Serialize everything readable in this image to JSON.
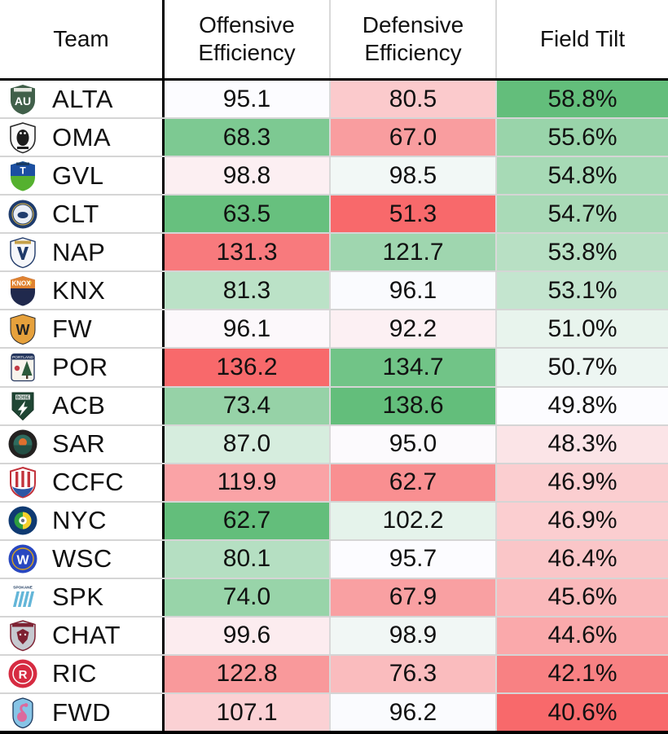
{
  "chart_data": {
    "type": "table",
    "title": "",
    "columns": [
      "Team",
      "Offensive Efficiency",
      "Defensive Efficiency",
      "Field Tilt"
    ],
    "color_scale": {
      "red": "#F8696B",
      "white": "#FCFCFF",
      "green": "#63BE7B",
      "offensive_efficiency_direction": "low-is-green",
      "defensive_efficiency_direction": "high-is-green",
      "field_tilt_direction": "high-is-green"
    },
    "grid": {
      "team_divider_color": "#000000",
      "stat_divider_color": "#D9D9D9",
      "row_separator_color": "#D5D5D5"
    },
    "rows": [
      {
        "team": "ALTA",
        "logo": "alta-logo-icon",
        "offensive_efficiency": 95.1,
        "defensive_efficiency": 80.5,
        "field_tilt": 58.8,
        "cell_colors": [
          "#FCFCFF",
          "#FBCACC",
          "#63BE7B"
        ]
      },
      {
        "team": "OMA",
        "logo": "oma-logo-icon",
        "offensive_efficiency": 68.3,
        "defensive_efficiency": 67.0,
        "field_tilt": 55.6,
        "cell_colors": [
          "#7DC992",
          "#F99D9F",
          "#99D4AA"
        ]
      },
      {
        "team": "GVL",
        "logo": "gvl-logo-icon",
        "offensive_efficiency": 98.8,
        "defensive_efficiency": 98.5,
        "field_tilt": 54.8,
        "cell_colors": [
          "#FCEFF2",
          "#F2F8F6",
          "#A7DAB6"
        ]
      },
      {
        "team": "CLT",
        "logo": "clt-logo-icon",
        "offensive_efficiency": 63.5,
        "defensive_efficiency": 51.3,
        "field_tilt": 54.7,
        "cell_colors": [
          "#67C07E",
          "#F8696B",
          "#A9DAB7"
        ]
      },
      {
        "team": "NAP",
        "logo": "nap-logo-icon",
        "offensive_efficiency": 131.3,
        "defensive_efficiency": 121.7,
        "field_tilt": 53.8,
        "cell_colors": [
          "#F87A7D",
          "#9FD6AF",
          "#B8E0C4"
        ]
      },
      {
        "team": "KNX",
        "logo": "knx-logo-icon",
        "offensive_efficiency": 81.3,
        "defensive_efficiency": 96.1,
        "field_tilt": 53.1,
        "cell_colors": [
          "#BBE2C7",
          "#FAFBFE",
          "#C4E5CF"
        ]
      },
      {
        "team": "FW",
        "logo": "fw-logo-icon",
        "offensive_efficiency": 96.1,
        "defensive_efficiency": 92.2,
        "field_tilt": 51.0,
        "cell_colors": [
          "#FCF8FB",
          "#FCF0F3",
          "#E8F4ED"
        ]
      },
      {
        "team": "POR",
        "logo": "por-logo-icon",
        "offensive_efficiency": 136.2,
        "defensive_efficiency": 134.7,
        "field_tilt": 50.7,
        "cell_colors": [
          "#F8696B",
          "#71C487",
          "#EDF6F2"
        ]
      },
      {
        "team": "ACB",
        "logo": "acb-logo-icon",
        "offensive_efficiency": 73.4,
        "defensive_efficiency": 138.6,
        "field_tilt": 49.8,
        "cell_colors": [
          "#96D2A7",
          "#63BE7B",
          "#FCFCFF"
        ]
      },
      {
        "team": "SAR",
        "logo": "sar-logo-icon",
        "offensive_efficiency": 87.0,
        "defensive_efficiency": 95.0,
        "field_tilt": 48.3,
        "cell_colors": [
          "#D6EDDE",
          "#FCFAFD",
          "#FBE4E7"
        ]
      },
      {
        "team": "CCFC",
        "logo": "ccfc-logo-icon",
        "offensive_efficiency": 119.9,
        "defensive_efficiency": 62.7,
        "field_tilt": 46.9,
        "cell_colors": [
          "#FAA3A6",
          "#F98F91",
          "#FBCED0"
        ]
      },
      {
        "team": "NYC",
        "logo": "nyc-logo-icon",
        "offensive_efficiency": 62.7,
        "defensive_efficiency": 102.2,
        "field_tilt": 46.9,
        "cell_colors": [
          "#63BE7B",
          "#E5F3EB",
          "#FBCED0"
        ]
      },
      {
        "team": "WSC",
        "logo": "wsc-logo-icon",
        "offensive_efficiency": 80.1,
        "defensive_efficiency": 95.7,
        "field_tilt": 46.4,
        "cell_colors": [
          "#B5DFC2",
          "#FCFCFF",
          "#FAC6C8"
        ]
      },
      {
        "team": "SPK",
        "logo": "spk-logo-icon",
        "offensive_efficiency": 74.0,
        "defensive_efficiency": 67.9,
        "field_tilt": 45.6,
        "cell_colors": [
          "#98D4A9",
          "#F9A0A2",
          "#FAB9BB"
        ]
      },
      {
        "team": "CHAT",
        "logo": "chat-logo-icon",
        "offensive_efficiency": 99.6,
        "defensive_efficiency": 98.9,
        "field_tilt": 44.6,
        "cell_colors": [
          "#FCECEF",
          "#F1F7F5",
          "#FAA9AB"
        ]
      },
      {
        "team": "RIC",
        "logo": "ric-logo-icon",
        "offensive_efficiency": 122.8,
        "defensive_efficiency": 76.3,
        "field_tilt": 42.1,
        "cell_colors": [
          "#F9999B",
          "#FABCBE",
          "#F88183"
        ]
      },
      {
        "team": "FWD",
        "logo": "fwd-logo-icon",
        "offensive_efficiency": 107.1,
        "defensive_efficiency": 96.2,
        "field_tilt": 40.6,
        "cell_colors": [
          "#FBD1D4",
          "#FAFBFE",
          "#F8696B"
        ]
      }
    ]
  }
}
